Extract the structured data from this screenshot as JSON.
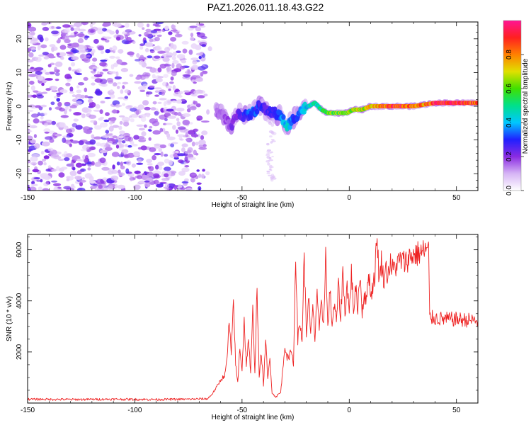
{
  "title": "PAZ1.2026.011.18.43.G22",
  "chart_data": [
    {
      "type": "heatmap",
      "name": "spectrogram",
      "xlabel": "Height of straight line (km)",
      "ylabel": "Frequency (Hz)",
      "xlim": [
        -150,
        60
      ],
      "ylim": [
        -25,
        25
      ],
      "x_ticks": [
        -150,
        -100,
        -50,
        0,
        50
      ],
      "x_tick_labels": [
        "-150",
        "-100",
        "-50",
        "0",
        "50"
      ],
      "y_ticks": [
        -20,
        -10,
        0,
        10,
        20
      ],
      "y_tick_labels": [
        "-20",
        "-10",
        "0",
        "10",
        "20"
      ],
      "colorbar": {
        "label": "Normalized spectral amplitude",
        "range": [
          0,
          1
        ],
        "ticks": [
          0.0,
          0.2,
          0.4,
          0.6,
          0.8
        ],
        "tick_labels": [
          "0.0",
          "0.2",
          "0.4",
          "0.6",
          "0.8"
        ],
        "colors": [
          "#ffffff",
          "#d6b4f5",
          "#8a2be2",
          "#2020ff",
          "#00c8ff",
          "#00e08a",
          "#40e000",
          "#e0e000",
          "#ff8000",
          "#ff2020",
          "#ff1493"
        ]
      },
      "noise_region_x": [
        -150,
        -67
      ],
      "signal_track": [
        {
          "x": -62,
          "y": -2,
          "amp": 0.15
        },
        {
          "x": -58,
          "y": -3,
          "amp": 0.18
        },
        {
          "x": -55,
          "y": -6,
          "amp": 0.2
        },
        {
          "x": -52,
          "y": -2,
          "amp": 0.25
        },
        {
          "x": -48,
          "y": -3,
          "amp": 0.3
        },
        {
          "x": -45,
          "y": -2,
          "amp": 0.35
        },
        {
          "x": -42,
          "y": 0,
          "amp": 0.3
        },
        {
          "x": -39,
          "y": -1,
          "amp": 0.25
        },
        {
          "x": -35,
          "y": -2,
          "amp": 0.3
        },
        {
          "x": -32,
          "y": -3,
          "amp": 0.35
        },
        {
          "x": -29,
          "y": -6,
          "amp": 0.45
        },
        {
          "x": -25,
          "y": -3,
          "amp": 0.3
        },
        {
          "x": -22,
          "y": -1,
          "amp": 0.4
        },
        {
          "x": -19,
          "y": 0,
          "amp": 0.45
        },
        {
          "x": -16,
          "y": 1,
          "amp": 0.5
        },
        {
          "x": -13,
          "y": -1,
          "amp": 0.55
        },
        {
          "x": -10,
          "y": -2,
          "amp": 0.6
        },
        {
          "x": -7,
          "y": -2,
          "amp": 0.62
        },
        {
          "x": -4,
          "y": -2,
          "amp": 0.65
        },
        {
          "x": -1,
          "y": -2,
          "amp": 0.65
        },
        {
          "x": 2,
          "y": -1,
          "amp": 0.7
        },
        {
          "x": 6,
          "y": -1,
          "amp": 0.72
        },
        {
          "x": 10,
          "y": 0,
          "amp": 0.75
        },
        {
          "x": 15,
          "y": 0,
          "amp": 0.85
        },
        {
          "x": 20,
          "y": 0,
          "amp": 0.9
        },
        {
          "x": 25,
          "y": 0,
          "amp": 0.92
        },
        {
          "x": 30,
          "y": 0,
          "amp": 0.88
        },
        {
          "x": 35,
          "y": 0.5,
          "amp": 0.8
        },
        {
          "x": 40,
          "y": 1,
          "amp": 0.95
        },
        {
          "x": 45,
          "y": 1,
          "amp": 0.97
        },
        {
          "x": 50,
          "y": 1,
          "amp": 0.95
        },
        {
          "x": 55,
          "y": 1,
          "amp": 0.92
        },
        {
          "x": 60,
          "y": 1,
          "amp": 0.9
        }
      ]
    },
    {
      "type": "line",
      "name": "snr",
      "xlabel": "Height of straight line (km)",
      "ylabel": "SNR (10 * v/v)",
      "xlim": [
        -150,
        60
      ],
      "ylim": [
        0,
        6600
      ],
      "x_ticks": [
        -150,
        -100,
        -50,
        0,
        50
      ],
      "x_tick_labels": [
        "-150",
        "-100",
        "-50",
        "0",
        "50"
      ],
      "y_ticks": [
        2000,
        4000,
        6000
      ],
      "y_tick_labels": [
        "2000",
        "4000",
        "6000"
      ],
      "color": "#ee2222",
      "series": [
        {
          "name": "SNR",
          "x": [
            -150,
            -130,
            -110,
            -90,
            -75,
            -66,
            -64,
            -62,
            -60,
            -58,
            -57,
            -56,
            -55,
            -54,
            -53,
            -52,
            -51,
            -50,
            -49,
            -48,
            -47,
            -46,
            -45,
            -44,
            -43,
            -42,
            -41,
            -40,
            -39,
            -38,
            -37,
            -36,
            -35,
            -34,
            -33,
            -32,
            -31,
            -30,
            -29,
            -28,
            -27,
            -26,
            -25,
            -24,
            -23,
            -22,
            -21,
            -20,
            -19,
            -18,
            -17,
            -16,
            -15,
            -14,
            -13,
            -12,
            -11,
            -10,
            -9,
            -8,
            -7,
            -6,
            -5,
            -4,
            -3,
            -2,
            -1,
            0,
            1,
            2,
            3,
            4,
            5,
            6,
            7,
            8,
            9,
            10,
            11,
            12,
            13,
            14,
            15,
            16,
            17,
            18,
            19,
            20,
            22,
            24,
            26,
            28,
            30,
            32,
            34,
            36,
            37,
            37.5,
            40,
            45,
            50,
            55,
            60
          ],
          "y": [
            150,
            140,
            150,
            140,
            150,
            170,
            350,
            600,
            900,
            1100,
            1700,
            3200,
            1800,
            4100,
            1500,
            800,
            2200,
            1300,
            3300,
            1400,
            2600,
            1100,
            3600,
            1200,
            4600,
            1000,
            2000,
            700,
            2500,
            900,
            1800,
            400,
            300,
            250,
            350,
            400,
            1300,
            2300,
            1800,
            1700,
            2200,
            1400,
            6000,
            2500,
            3100,
            2500,
            5800,
            2600,
            4300,
            2600,
            3700,
            2500,
            4500,
            2800,
            3800,
            3100,
            5900,
            2900,
            4400,
            3100,
            3800,
            3200,
            4600,
            3300,
            5200,
            3500,
            4700,
            3500,
            5100,
            3700,
            4400,
            3800,
            5100,
            3600,
            4300,
            3900,
            5300,
            4200,
            4600,
            5100,
            6600,
            4700,
            5600,
            4800,
            5300,
            5000,
            5500,
            5200,
            5400,
            5600,
            5500,
            5700,
            5800,
            5850,
            5900,
            6000,
            5950,
            3350,
            3320,
            3280,
            3280,
            3250,
            3220
          ]
        }
      ]
    }
  ]
}
